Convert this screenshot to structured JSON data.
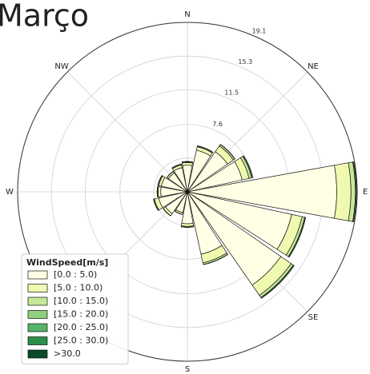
{
  "chart_data": {
    "type": "windrose",
    "title": "Março",
    "categories": [
      "N",
      null,
      "NE",
      null,
      "E",
      null,
      "SE",
      null,
      "S",
      null,
      "SW",
      null,
      "W",
      null,
      "NW",
      null
    ],
    "ylim": [
      0,
      19.1
    ],
    "yticks": [
      3.8,
      7.6,
      11.5,
      15.3,
      19.1
    ],
    "legend_title": "WindSpeed[m/s]",
    "legend": "lower-left",
    "series": [
      {
        "name": "[0.0 : 5.0)",
        "color": "#ffffe5",
        "values": [
          3.0,
          4.8,
          5.5,
          6.3,
          16.8,
          12.0,
          12.8,
          7.2,
          3.6,
          2.4,
          3.0,
          3.3,
          3.0,
          3.0,
          2.6,
          2.8
        ]
      },
      {
        "name": "[5.0 : 10.0)",
        "color": "#f0f9b0",
        "values": [
          0.3,
          0.4,
          0.8,
          0.8,
          1.6,
          1.2,
          1.4,
          1.0,
          0.3,
          0.2,
          0.3,
          0.5,
          0.3,
          0.3,
          0.2,
          0.3
        ]
      },
      {
        "name": "[10.0 : 15.0)",
        "color": "#c7e89b",
        "values": [
          0.1,
          0.1,
          0.2,
          0.3,
          0.5,
          0.3,
          0.3,
          0.2,
          0.1,
          0,
          0,
          0.1,
          0.1,
          0.1,
          0,
          0.1
        ]
      },
      {
        "name": "[15.0 : 20.0)",
        "color": "#8fcf7e",
        "values": [
          0,
          0,
          0,
          0.1,
          0.1,
          0.1,
          0.1,
          0,
          0,
          0,
          0,
          0,
          0,
          0,
          0,
          0
        ]
      },
      {
        "name": "[20.0 : 25.0)",
        "color": "#56b567",
        "values": [
          0,
          0,
          0,
          0,
          0,
          0,
          0,
          0,
          0,
          0,
          0,
          0,
          0,
          0,
          0,
          0
        ]
      },
      {
        "name": "[25.0 : 30.0)",
        "color": "#2a8f4a",
        "values": [
          0,
          0,
          0,
          0,
          0,
          0,
          0,
          0,
          0,
          0,
          0,
          0,
          0,
          0,
          0,
          0
        ]
      },
      {
        "name": ">30.0",
        "color": "#0b4a27",
        "values": [
          0,
          0,
          0,
          0,
          0,
          0,
          0,
          0,
          0,
          0,
          0,
          0,
          0,
          0,
          0,
          0
        ]
      }
    ]
  }
}
